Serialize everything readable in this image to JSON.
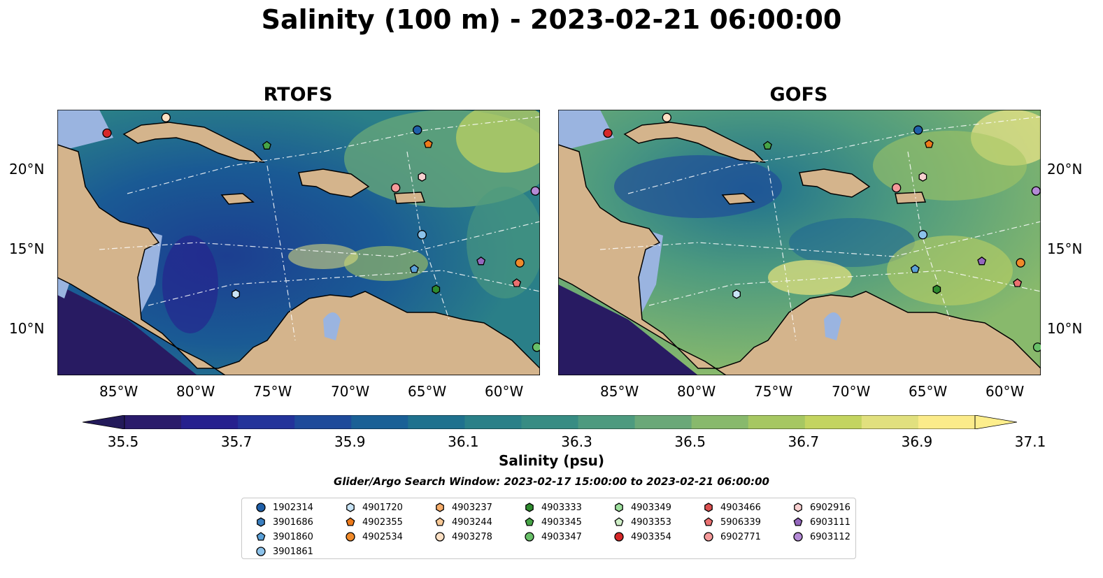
{
  "title": "Salinity (100 m) - 2023-02-21 06:00:00",
  "panels": [
    {
      "title": "RTOFS"
    },
    {
      "title": "GOFS"
    }
  ],
  "axes": {
    "lat_labels": [
      "20°N",
      "15°N",
      "10°N"
    ],
    "lon_labels": [
      "85°W",
      "80°W",
      "75°W",
      "70°W",
      "65°W",
      "60°W"
    ]
  },
  "colorbar": {
    "label": "Salinity (psu)",
    "ticks": [
      "35.5",
      "35.7",
      "35.9",
      "36.1",
      "36.3",
      "36.5",
      "36.7",
      "36.9",
      "37.1"
    ],
    "colors": [
      "#2a1b6b",
      "#26208e",
      "#23339a",
      "#1e4a9a",
      "#1a6096",
      "#1f718e",
      "#2a8088",
      "#378c83",
      "#4d9a7f",
      "#6aa878",
      "#88b96c",
      "#a6c762",
      "#c3d460",
      "#e1e07e",
      "#fbeb8a"
    ],
    "extend_min_color": "#231a5a",
    "extend_max_color": "#fdee8c"
  },
  "search_window": "Glider/Argo Search Window: 2023-02-17 15:00:00 to 2023-02-21 06:00:00",
  "colors": {
    "land": "#d4b48c",
    "shelf": "#9ab4e0",
    "deep_pacific": "#281b62"
  },
  "legend": [
    {
      "id": "1902314",
      "marker": "circle",
      "color": "#1f5fa8"
    },
    {
      "id": "3901686",
      "marker": "hexagon",
      "color": "#3a7fc0"
    },
    {
      "id": "3901860",
      "marker": "pentagon",
      "color": "#5aa0d8"
    },
    {
      "id": "3901861",
      "marker": "circle",
      "color": "#8cc2ea"
    },
    {
      "id": "4901720",
      "marker": "hexagon",
      "color": "#c8e4f6"
    },
    {
      "id": "4902355",
      "marker": "pentagon",
      "color": "#ee7a1a"
    },
    {
      "id": "4902534",
      "marker": "circle",
      "color": "#f08a2a"
    },
    {
      "id": "4903237",
      "marker": "hexagon",
      "color": "#f7ad6a"
    },
    {
      "id": "4903244",
      "marker": "pentagon",
      "color": "#f8c996"
    },
    {
      "id": "4903278",
      "marker": "circle",
      "color": "#fde0c4"
    },
    {
      "id": "4903333",
      "marker": "hexagon",
      "color": "#2e8b2e"
    },
    {
      "id": "4903345",
      "marker": "pentagon",
      "color": "#46a446"
    },
    {
      "id": "4903347",
      "marker": "circle",
      "color": "#68c068"
    },
    {
      "id": "4903349",
      "marker": "hexagon",
      "color": "#9ee09e"
    },
    {
      "id": "4903353",
      "marker": "pentagon",
      "color": "#d0f0c8"
    },
    {
      "id": "4903354",
      "marker": "circle",
      "color": "#d62728"
    },
    {
      "id": "4903466",
      "marker": "hexagon",
      "color": "#dc5050"
    },
    {
      "id": "5906339",
      "marker": "pentagon",
      "color": "#ea7070"
    },
    {
      "id": "6902771",
      "marker": "circle",
      "color": "#f59a9a"
    },
    {
      "id": "6902916",
      "marker": "hexagon",
      "color": "#f8d0d0"
    },
    {
      "id": "6903111",
      "marker": "pentagon",
      "color": "#9467bd"
    },
    {
      "id": "6903112",
      "marker": "circle",
      "color": "#b48ad6"
    }
  ],
  "floats_lonlat": [
    {
      "id": "4903354",
      "lon": -85.8,
      "lat": 22.5
    },
    {
      "id": "4903278",
      "lon": -82.0,
      "lat": 23.5
    },
    {
      "id": "4903345",
      "lon": -75.5,
      "lat": 21.7
    },
    {
      "id": "1902314",
      "lon": -65.8,
      "lat": 22.7
    },
    {
      "id": "4902355",
      "lon": -65.1,
      "lat": 21.8
    },
    {
      "id": "6902916",
      "lon": -65.5,
      "lat": 19.7
    },
    {
      "id": "6902771",
      "lon": -67.2,
      "lat": 19.0
    },
    {
      "id": "6903112",
      "lon": -58.2,
      "lat": 18.8
    },
    {
      "id": "3901861",
      "lon": -65.5,
      "lat": 16.0
    },
    {
      "id": "6903111",
      "lon": -61.7,
      "lat": 14.3
    },
    {
      "id": "4902534",
      "lon": -59.2,
      "lat": 14.2
    },
    {
      "id": "3901860",
      "lon": -66.0,
      "lat": 13.8
    },
    {
      "id": "5906339",
      "lon": -59.4,
      "lat": 12.9
    },
    {
      "id": "4903333",
      "lon": -64.6,
      "lat": 12.5
    },
    {
      "id": "4901720",
      "lon": -77.5,
      "lat": 12.2
    },
    {
      "id": "4903347",
      "lon": -58.1,
      "lat": 8.8
    }
  ]
}
